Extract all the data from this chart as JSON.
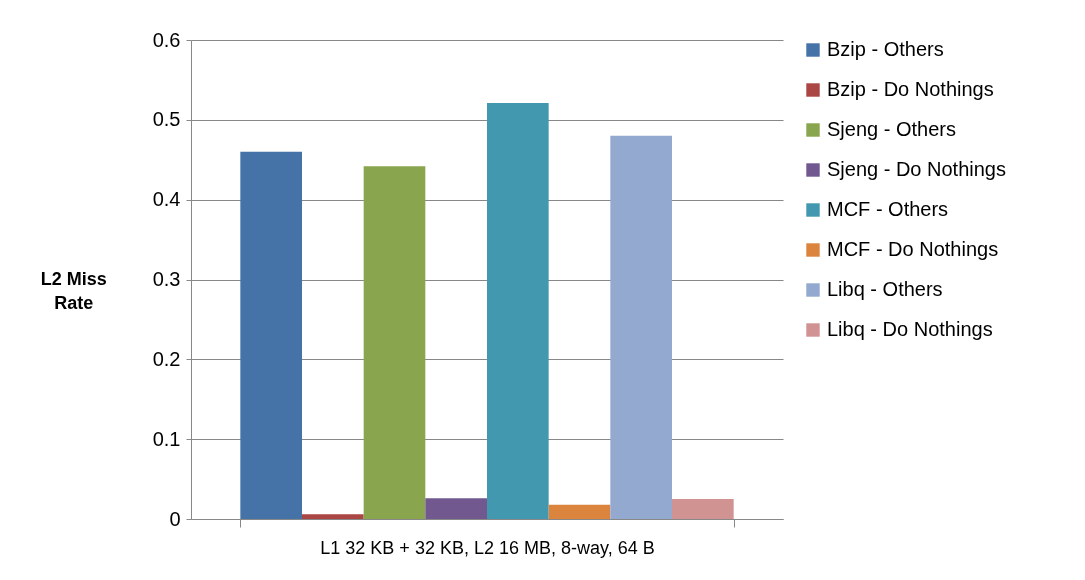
{
  "chart_data": {
    "type": "bar",
    "ylabel": "L2 Miss Rate",
    "categories": [
      "L1 32 KB + 32 KB, L2 16 MB, 8-way, 64 B"
    ],
    "series": [
      {
        "name": "Bzip - Others",
        "color": "#4572a7",
        "values": [
          0.46
        ]
      },
      {
        "name": "Bzip - Do Nothings",
        "color": "#aa4643",
        "values": [
          0.006
        ]
      },
      {
        "name": "Sjeng - Others",
        "color": "#89a54e",
        "values": [
          0.442
        ]
      },
      {
        "name": "Sjeng - Do Nothings",
        "color": "#71588f",
        "values": [
          0.026
        ]
      },
      {
        "name": "MCF - Others",
        "color": "#4198af",
        "values": [
          0.521
        ]
      },
      {
        "name": "MCF - Do Nothings",
        "color": "#db843d",
        "values": [
          0.018
        ]
      },
      {
        "name": "Libq - Others",
        "color": "#93a9cf",
        "values": [
          0.48
        ]
      },
      {
        "name": "Libq - Do Nothings",
        "color": "#d19392",
        "values": [
          0.025
        ]
      }
    ],
    "ylim": [
      0,
      0.6
    ],
    "yticks": [
      0,
      0.1,
      0.2,
      0.3,
      0.4,
      0.5,
      0.6
    ],
    "grid": "y",
    "legend": "right"
  }
}
